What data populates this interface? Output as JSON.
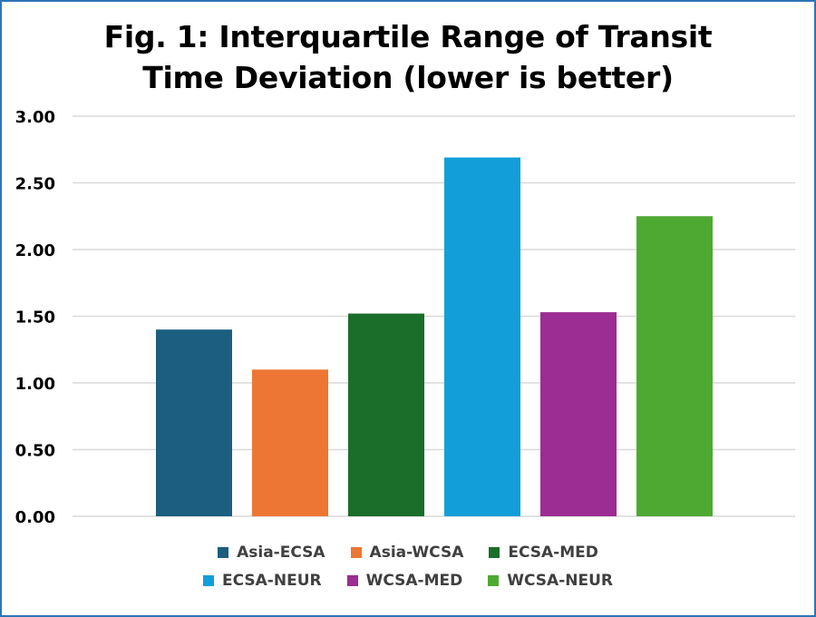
{
  "chart_data": {
    "type": "bar",
    "title": "Fig. 1: Interquartile Range of Transit Time Deviation (lower is better)",
    "title_lines": [
      "Fig. 1: Interquartile Range of Transit",
      "Time Deviation (lower is better)"
    ],
    "xlabel": "",
    "ylabel": "",
    "ylim": [
      0,
      3
    ],
    "yticks": [
      "0.00",
      "0.50",
      "1.00",
      "1.50",
      "2.00",
      "2.50",
      "3.00"
    ],
    "grid": true,
    "legend_position": "bottom",
    "series": [
      {
        "name": "Asia-ECSA",
        "value": 1.4,
        "color": "#1b5e80"
      },
      {
        "name": "Asia-WCSA",
        "value": 1.1,
        "color": "#ed7634"
      },
      {
        "name": "ECSA-MED",
        "value": 1.52,
        "color": "#1b6e2a"
      },
      {
        "name": "ECSA-NEUR",
        "value": 2.69,
        "color": "#129fd9"
      },
      {
        "name": "WCSA-MED",
        "value": 1.53,
        "color": "#9c2d92"
      },
      {
        "name": "WCSA-NEUR",
        "value": 2.25,
        "color": "#4ea932"
      }
    ]
  }
}
